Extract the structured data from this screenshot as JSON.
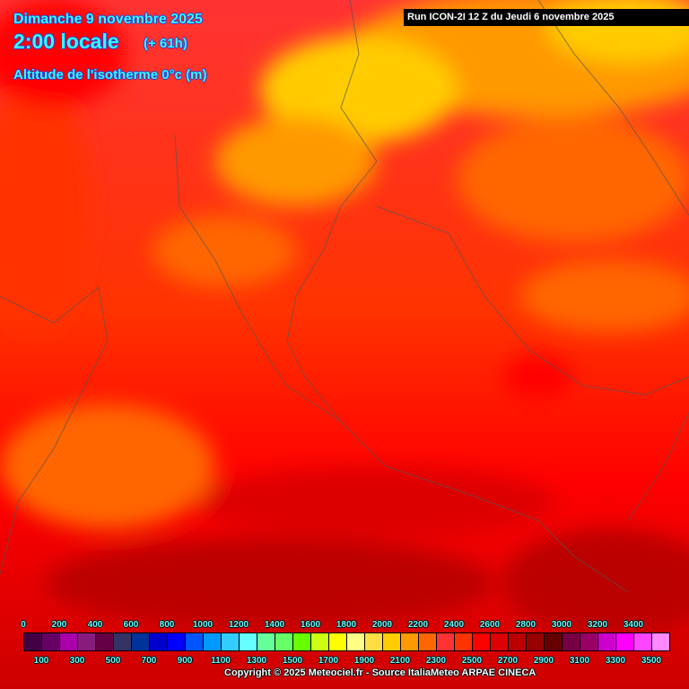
{
  "header": {
    "date": "Dimanche 9 novembre 2025",
    "time": "2:00 locale",
    "lead": "(+ 61h)",
    "variable": "Altitude de l'isotherme 0°c (m)",
    "run": "Run ICON-2I 12 Z du Jeudi 6 novembre 2025"
  },
  "legend": {
    "top_labels": [
      "0",
      "200",
      "400",
      "600",
      "800",
      "1000",
      "1200",
      "1400",
      "1600",
      "1800",
      "2000",
      "2200",
      "2400",
      "2600",
      "2800",
      "3000",
      "3200",
      "3400"
    ],
    "bottom_labels": [
      "100",
      "300",
      "500",
      "700",
      "900",
      "1100",
      "1300",
      "1500",
      "1700",
      "1900",
      "2100",
      "2300",
      "2500",
      "2700",
      "2900",
      "3100",
      "3300",
      "3500"
    ],
    "colors": [
      "#440044",
      "#660066",
      "#aa00aa",
      "#881c7c",
      "#660044",
      "#333366",
      "#003399",
      "#0000cc",
      "#0000ff",
      "#0055ff",
      "#0099ff",
      "#33ccff",
      "#66ffff",
      "#66ff99",
      "#66ff66",
      "#66ff00",
      "#ccff11",
      "#ffff00",
      "#ffff88",
      "#ffdd44",
      "#ffcc00",
      "#ff9900",
      "#ff6600",
      "#ff3333",
      "#ff3300",
      "#ff0000",
      "#dd0000",
      "#bb0000",
      "#990000",
      "#660000",
      "#770044",
      "#990066",
      "#cc00cc",
      "#ff00ff",
      "#ff44ff",
      "#ff88ff"
    ]
  },
  "copyright": "Copyright © 2025 Meteociel.fr - Source ItaliaMeteo ARPAE CINECA"
}
